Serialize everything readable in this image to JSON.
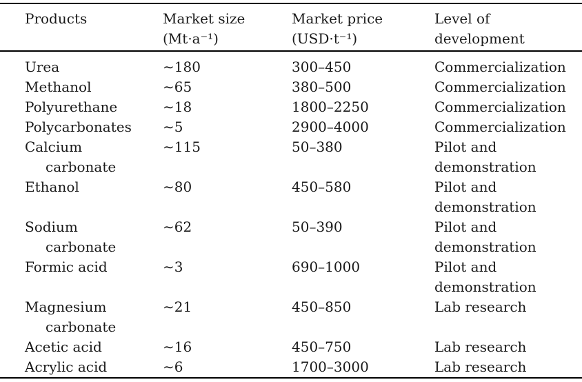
{
  "colors": {
    "background": "#ffffff",
    "text": "#1a1a1a",
    "rule": "#000000"
  },
  "table": {
    "columns": [
      {
        "header": "Products"
      },
      {
        "header": "Market size\n(Mt·a⁻¹)"
      },
      {
        "header": "Market price\n(USD·t⁻¹)"
      },
      {
        "header": "Level of\ndevelopment"
      }
    ],
    "rows": [
      {
        "product": "Urea",
        "market_size": "∼180",
        "market_price": "300–450",
        "development": "Commercialization"
      },
      {
        "product": "Methanol",
        "market_size": "∼65",
        "market_price": "380–500",
        "development": "Commercialization"
      },
      {
        "product": "Polyurethane",
        "market_size": "∼18",
        "market_price": "1800–2250",
        "development": "Commercialization"
      },
      {
        "product": "Polycarbonates",
        "market_size": "∼5",
        "market_price": "2900–4000",
        "development": "Commercialization"
      },
      {
        "product": "Calcium\ncarbonate",
        "market_size": "∼115",
        "market_price": "50–380",
        "development": "Pilot and\ndemonstration"
      },
      {
        "product": "Ethanol",
        "market_size": "∼80",
        "market_price": "450–580",
        "development": "Pilot and\ndemonstration"
      },
      {
        "product": "Sodium\ncarbonate",
        "market_size": "∼62",
        "market_price": "50–390",
        "development": "Pilot and\ndemonstration"
      },
      {
        "product": "Formic acid",
        "market_size": "∼3",
        "market_price": "690–1000",
        "development": "Pilot and\ndemonstration"
      },
      {
        "product": "Magnesium\ncarbonate",
        "market_size": "∼21",
        "market_price": "450–850",
        "development": "Lab research"
      },
      {
        "product": "Acetic acid",
        "market_size": "∼16",
        "market_price": "450–750",
        "development": "Lab research"
      },
      {
        "product": "Acrylic acid",
        "market_size": "∼6",
        "market_price": "1700–3000",
        "development": "Lab research"
      }
    ]
  }
}
